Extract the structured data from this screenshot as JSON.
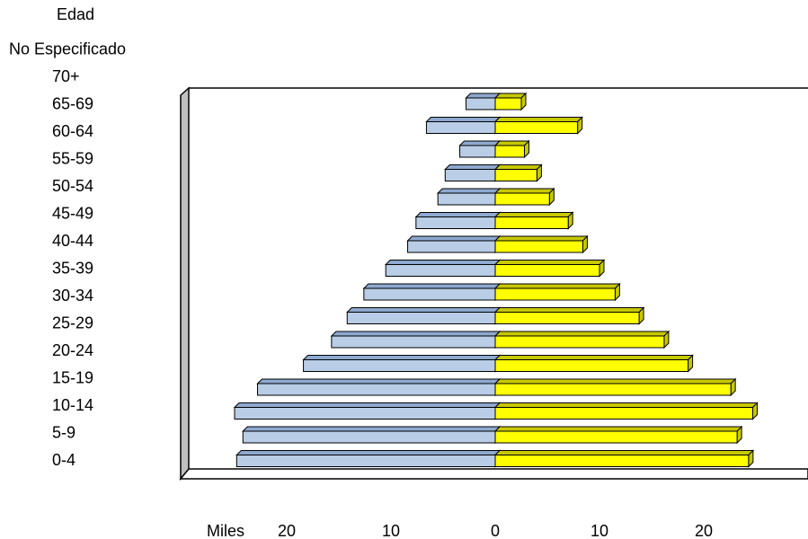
{
  "chart_data": {
    "type": "pyramid",
    "title": "Edad",
    "x_label": "Miles",
    "categories": [
      "0-4",
      "5-9",
      "10-14",
      "15-19",
      "20-24",
      "25-29",
      "30-34",
      "35-39",
      "40-44",
      "45-49",
      "50-54",
      "55-59",
      "60-64",
      "65-69",
      "70+",
      "No Especificado"
    ],
    "series": [
      {
        "side": "left",
        "color": "#8ea9cf",
        "front_color": "#b9cde6",
        "values": [
          24.8,
          24.2,
          25.0,
          22.8,
          18.4,
          15.7,
          14.2,
          12.6,
          10.5,
          8.4,
          7.6,
          5.5,
          4.8,
          3.4,
          6.6,
          2.8
        ]
      },
      {
        "side": "right",
        "color": "#c8c800",
        "front_color": "#ffff00",
        "values": [
          24.3,
          23.2,
          24.7,
          22.6,
          18.5,
          16.2,
          13.8,
          11.5,
          10.0,
          8.4,
          7.0,
          5.2,
          4.0,
          2.8,
          7.9,
          2.5
        ]
      }
    ],
    "xlim": [
      -30,
      30
    ],
    "xticks": [
      {
        "value": -20,
        "label": "20"
      },
      {
        "value": -10,
        "label": "10"
      },
      0,
      10,
      20
    ]
  }
}
